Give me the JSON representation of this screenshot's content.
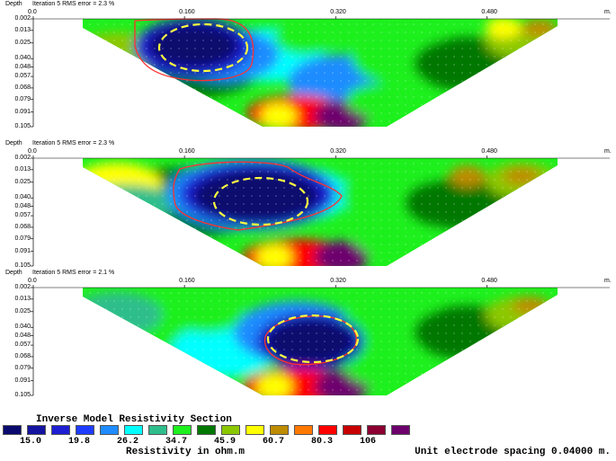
{
  "sections": [
    {
      "depth_label": "Depth",
      "iteration_text": "Iteration 5 RMS error = 2.3 %",
      "x_ticks": [
        "0.0",
        "0.160",
        "0.320",
        "0.480"
      ],
      "x_unit": "m.",
      "depth_ticks": [
        "0.002",
        "0.013",
        "0.025",
        "0.040",
        "0.048",
        "0.057",
        "0.068",
        "0.079",
        "0.091",
        "0.105"
      ]
    },
    {
      "depth_label": "Depth",
      "iteration_text": "Iteration 5 RMS error = 2.3 %",
      "x_ticks": [
        "0.0",
        "0.160",
        "0.320",
        "0.480"
      ],
      "x_unit": "m.",
      "depth_ticks": [
        "0.002",
        "0.013",
        "0.025",
        "0.040",
        "0.048",
        "0.057",
        "0.068",
        "0.079",
        "0.091",
        "0.105"
      ]
    },
    {
      "depth_label": "Depth",
      "iteration_text": "Iteration 5 RMS error = 2.1 %",
      "x_ticks": [
        "0.0",
        "0.160",
        "0.320",
        "0.480"
      ],
      "x_unit": "m.",
      "depth_ticks": [
        "0.002",
        "0.013",
        "0.025",
        "0.040",
        "0.048",
        "0.057",
        "0.068",
        "0.079",
        "0.091",
        "0.105"
      ]
    }
  ],
  "legend": {
    "title": "Inverse Model Resistivity Section",
    "subtitle": "Resistivity in ohm.m",
    "colors": [
      "#0a0a6e",
      "#1414a0",
      "#1e1ed2",
      "#1e3cff",
      "#1e8cff",
      "#00ffff",
      "#2ebe8c",
      "#1ef01e",
      "#007800",
      "#8cc800",
      "#ffff00",
      "#be8c00",
      "#ff7800",
      "#ff0000",
      "#c80000",
      "#8c0032",
      "#6e006e"
    ],
    "values": [
      "15.0",
      "19.8",
      "26.2",
      "34.7",
      "45.9",
      "60.7",
      "80.3",
      "106"
    ]
  },
  "spacing_text": "Unit electrode spacing 0.04000 m."
}
